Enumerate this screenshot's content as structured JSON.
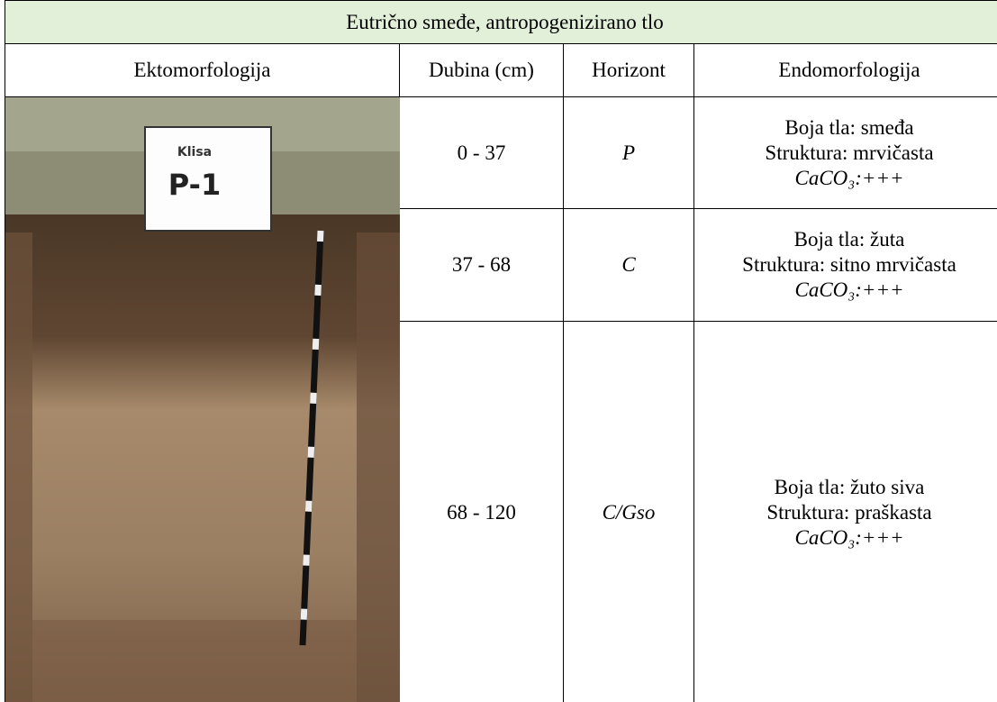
{
  "header": {
    "title": "Eutrično smeđe, antropogenizirano tlo"
  },
  "table": {
    "columns": [
      "Ektomorfologija",
      "Dubina (cm)",
      "Horizont",
      "Endomorfologija"
    ],
    "rows": [
      {
        "depth": "0 - 37",
        "horizon": "P",
        "description": [
          "Boja tla: smeđa",
          "Struktura: mrvičasta",
          "CaCO₃:+++"
        ]
      },
      {
        "depth": "37 - 68",
        "horizon": "C",
        "description": [
          "Boja tla: žuta",
          "Struktura: sitno mrvičasta",
          "CaCO₃:+++"
        ]
      },
      {
        "depth": "68 - 120",
        "horizon": "C/Gso",
        "description": [
          "Boja tla: žuto siva",
          "Struktura: praškasta",
          "CaCO₃:+++"
        ]
      }
    ]
  },
  "photo": {
    "sign_site": "Klisa",
    "sign_profile": "P-1"
  }
}
